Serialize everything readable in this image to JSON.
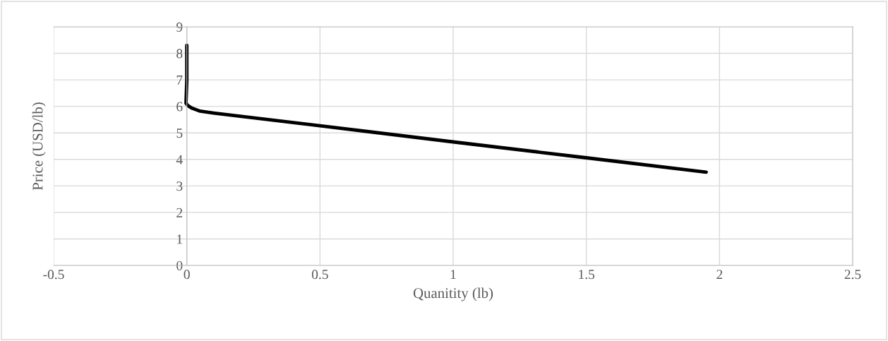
{
  "chart_data": {
    "type": "line",
    "xlabel": "Quanitity (lb)",
    "ylabel": "Price (USD/lb)",
    "series": [
      {
        "color": "#000000",
        "x": [
          0,
          0,
          -0.003,
          0.005,
          0.02,
          0.05,
          0.1,
          0.5,
          1,
          1.5,
          1.95
        ],
        "values": [
          8.3,
          7,
          6.12,
          6.02,
          5.93,
          5.82,
          5.75,
          5.27,
          4.66,
          4.06,
          3.52
        ]
      }
    ],
    "xlim": [
      -0.5,
      2.5
    ],
    "xticks": [
      -0.5,
      0,
      0.5,
      1,
      1.5,
      2,
      2.5
    ],
    "ylim": [
      0,
      9
    ],
    "yticks": [
      0,
      1,
      2,
      3,
      4,
      5,
      6,
      7,
      8,
      9
    ],
    "grid": true,
    "legend": false,
    "marker": "none",
    "line_style": "solid"
  }
}
